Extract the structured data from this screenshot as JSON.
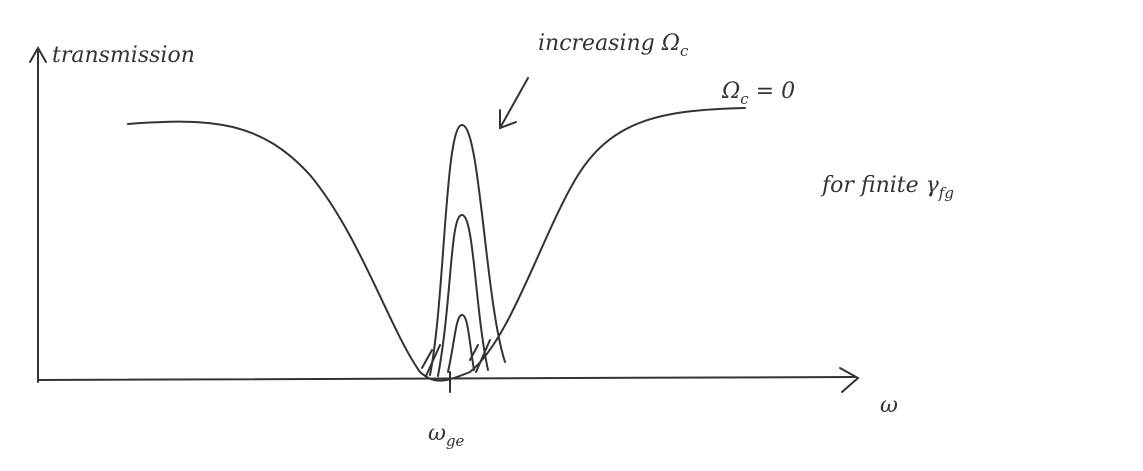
{
  "axes": {
    "y_label": "transmission",
    "x_label": "ω"
  },
  "annotations": {
    "increasing": {
      "text": "increasing Ω",
      "sub": "c"
    },
    "zero": {
      "text": "Ω",
      "sub": "c",
      "rest": " = 0"
    },
    "finite": {
      "text": "for finite γ",
      "sub": "fg"
    },
    "resonance": {
      "text": "ω",
      "sub": "ge"
    }
  }
}
